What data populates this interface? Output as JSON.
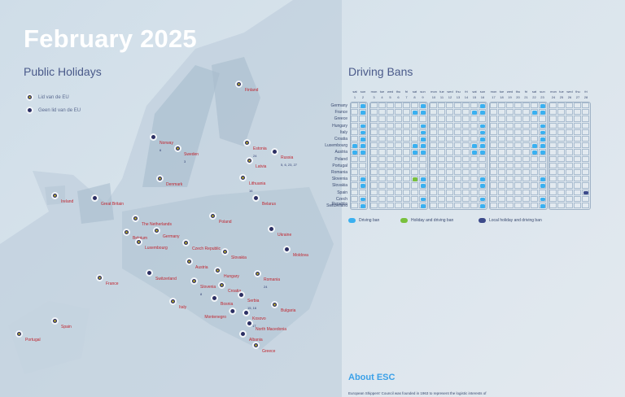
{
  "title": "February 2025",
  "public_holidays": {
    "heading": "Public Holidays",
    "legend": [
      {
        "label": "Lid van de EU",
        "type": "eu"
      },
      {
        "label": "Geen lid van de EU",
        "type": "noneu"
      }
    ],
    "countries": [
      {
        "name": "Finland",
        "eu": true,
        "days": ""
      },
      {
        "name": "Norway",
        "eu": false,
        "days": "6"
      },
      {
        "name": "Sweden",
        "eu": true,
        "days": "3"
      },
      {
        "name": "Estonia",
        "eu": true,
        "days": "24"
      },
      {
        "name": "Russia",
        "eu": false,
        "days": "5, 6, 23, 27"
      },
      {
        "name": "Latvia",
        "eu": true,
        "days": ""
      },
      {
        "name": "Lithuania",
        "eu": true,
        "days": "16"
      },
      {
        "name": "Denmark",
        "eu": true,
        "days": ""
      },
      {
        "name": "Belarus",
        "eu": false,
        "days": ""
      },
      {
        "name": "Ireland",
        "eu": true,
        "days": ""
      },
      {
        "name": "Great Britain",
        "eu": false,
        "days": ""
      },
      {
        "name": "Poland",
        "eu": true,
        "days": ""
      },
      {
        "name": "Ukraine",
        "eu": false,
        "days": ""
      },
      {
        "name": "The Netherlands",
        "eu": true,
        "days": ""
      },
      {
        "name": "Belgium",
        "eu": true,
        "days": ""
      },
      {
        "name": "Germany",
        "eu": true,
        "days": ""
      },
      {
        "name": "Luxembourg",
        "eu": true,
        "days": ""
      },
      {
        "name": "Czech Republic",
        "eu": true,
        "days": ""
      },
      {
        "name": "Slovakia",
        "eu": true,
        "days": ""
      },
      {
        "name": "Moldova",
        "eu": false,
        "days": ""
      },
      {
        "name": "Austria",
        "eu": true,
        "days": ""
      },
      {
        "name": "Hungary",
        "eu": true,
        "days": ""
      },
      {
        "name": "Switzerland",
        "eu": false,
        "days": ""
      },
      {
        "name": "Romania",
        "eu": true,
        "days": "24"
      },
      {
        "name": "France",
        "eu": true,
        "days": ""
      },
      {
        "name": "Slovenia",
        "eu": true,
        "days": "8"
      },
      {
        "name": "Croatia",
        "eu": true,
        "days": ""
      },
      {
        "name": "Serbia",
        "eu": false,
        "days": "15, 16"
      },
      {
        "name": "Bosnia",
        "eu": false,
        "days": ""
      },
      {
        "name": "Italy",
        "eu": true,
        "days": ""
      },
      {
        "name": "Bulgaria",
        "eu": true,
        "days": ""
      },
      {
        "name": "Montenegro",
        "eu": false,
        "days": ""
      },
      {
        "name": "Kosovo",
        "eu": false,
        "days": "17"
      },
      {
        "name": "North Macedonia",
        "eu": false,
        "days": ""
      },
      {
        "name": "Albania",
        "eu": false,
        "days": ""
      },
      {
        "name": "Greece",
        "eu": true,
        "days": ""
      },
      {
        "name": "Spain",
        "eu": true,
        "days": ""
      },
      {
        "name": "Portugal",
        "eu": true,
        "days": ""
      }
    ]
  },
  "driving_bans": {
    "heading": "Driving Bans",
    "weekdays": [
      "mon",
      "tue",
      "wed",
      "thu",
      "fri",
      "sat",
      "sun"
    ],
    "first_weekday_index": 5,
    "days_in_month": 28,
    "colors": {
      "ban": "#3ab0f0",
      "holiday": "#78c03c",
      "local": "#3c4a8a"
    },
    "legend": [
      {
        "label": "Driving ban",
        "type": "ban"
      },
      {
        "label": "Holiday and driving ban",
        "type": "holiday"
      },
      {
        "label": "Local holiday and driving ban",
        "type": "local"
      }
    ],
    "countries": [
      {
        "name": "Germany",
        "ban": [
          2,
          9,
          16,
          23
        ]
      },
      {
        "name": "France",
        "ban": [
          2,
          8,
          9,
          15,
          16,
          22,
          23
        ]
      },
      {
        "name": "Greece",
        "ban": []
      },
      {
        "name": "Hungary",
        "ban": [
          2,
          9,
          16,
          23
        ]
      },
      {
        "name": "Italy",
        "ban": [
          2,
          9,
          16,
          23
        ]
      },
      {
        "name": "Croatia",
        "ban": [
          2,
          9,
          16,
          23
        ]
      },
      {
        "name": "Luxembourg",
        "ban": [
          1,
          2,
          8,
          9,
          15,
          16,
          22,
          23
        ]
      },
      {
        "name": "Austria",
        "ban": [
          1,
          2,
          8,
          9,
          15,
          16,
          22,
          23
        ]
      },
      {
        "name": "Poland",
        "ban": []
      },
      {
        "name": "Portugal",
        "ban": []
      },
      {
        "name": "Romania",
        "ban": []
      },
      {
        "name": "Slovenia",
        "ban": [
          2,
          9,
          16,
          23
        ],
        "holiday": [
          8
        ]
      },
      {
        "name": "Slovakia",
        "ban": [
          2,
          9,
          16,
          23
        ]
      },
      {
        "name": "Spain",
        "ban": [],
        "local": [
          28
        ]
      },
      {
        "name": "Czech Republic",
        "ban": [
          2,
          9,
          16,
          23
        ]
      },
      {
        "name": "Switzerland",
        "ban": [
          2,
          9,
          16,
          23
        ]
      }
    ]
  },
  "about": {
    "heading": "About ESC",
    "text": "European Shippers' Council was founded in 1963 to represent the logistic interests of"
  }
}
